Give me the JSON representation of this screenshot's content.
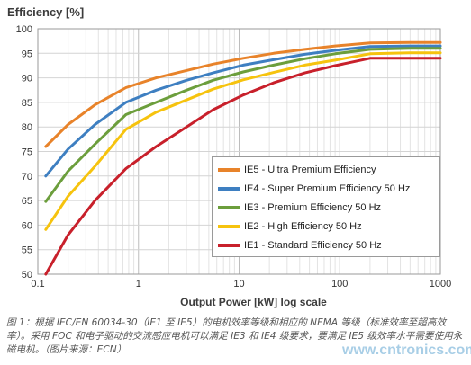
{
  "chart_data": {
    "type": "line",
    "title": "",
    "ylabel": "Efficiency [%]",
    "xlabel": "Output Power [kW]  log scale",
    "x_scale": "log",
    "xlim": [
      0.1,
      1000
    ],
    "ylim": [
      50,
      100
    ],
    "x_ticks": [
      "0.1",
      "1",
      "10",
      "100",
      "1000"
    ],
    "y_ticks": [
      "50",
      "55",
      "60",
      "65",
      "70",
      "75",
      "80",
      "85",
      "90",
      "95",
      "100"
    ],
    "grid": true,
    "legend_position": "lower-right inside plot",
    "series": [
      {
        "name": "IE5 - Ultra Premium Efficiency",
        "color": "#e8832a",
        "x": [
          0.12,
          0.2,
          0.37,
          0.75,
          1.5,
          3,
          5.5,
          11,
          22,
          45,
          90,
          200,
          500,
          1000
        ],
        "y": [
          76,
          80.5,
          84.5,
          88,
          90,
          91.5,
          92.8,
          94,
          95,
          95.8,
          96.5,
          97.1,
          97.2,
          97.2
        ]
      },
      {
        "name": "IE4 - Super Premium Efficiency 50 Hz",
        "color": "#3e7fc1",
        "x": [
          0.12,
          0.2,
          0.37,
          0.75,
          1.5,
          3,
          5.5,
          11,
          22,
          45,
          90,
          200,
          500,
          1000
        ],
        "y": [
          70,
          75.5,
          80.5,
          85,
          87.5,
          89.5,
          91,
          92.6,
          93.7,
          94.8,
          95.6,
          96.4,
          96.5,
          96.5
        ]
      },
      {
        "name": "IE3 - Premium Efficiency 50 Hz",
        "color": "#6c9e3c",
        "x": [
          0.12,
          0.2,
          0.37,
          0.75,
          1.5,
          3,
          5.5,
          11,
          22,
          45,
          90,
          200,
          500,
          1000
        ],
        "y": [
          64.8,
          71,
          76.5,
          82.5,
          85,
          87.5,
          89.5,
          91.2,
          92.6,
          93.9,
          94.9,
          95.8,
          96,
          96
        ]
      },
      {
        "name": "IE2 - High Efficiency 50 Hz",
        "color": "#f6c30e",
        "x": [
          0.12,
          0.2,
          0.37,
          0.75,
          1.5,
          3,
          5.5,
          11,
          22,
          45,
          90,
          200,
          500,
          1000
        ],
        "y": [
          59.1,
          65.9,
          72,
          79.5,
          83,
          85.5,
          87.7,
          89.6,
          91.1,
          92.6,
          93.6,
          94.9,
          95.1,
          95.1
        ]
      },
      {
        "name": "IE1 - Standard Efficiency 50 Hz",
        "color": "#c8202b",
        "x": [
          0.12,
          0.2,
          0.37,
          0.75,
          1.5,
          3,
          5.5,
          11,
          22,
          45,
          90,
          200,
          500,
          1000
        ],
        "y": [
          50,
          58,
          65,
          71.5,
          76,
          80,
          83.5,
          86.5,
          89,
          91,
          92.5,
          94,
          94,
          94
        ]
      }
    ]
  },
  "caption": "图 1：根据 IEC/EN 60034-30（IE1 至 IE5）的电机效率等级和相应的 NEMA 等级（标准效率至超高效率）。采用 FOC 和电子驱动的交流感应电机可以满足 IE3 和 IE4 级要求，要满足 IE5 级效率水平需要使用永磁电机。（图片来源：ECN）",
  "watermark": "www.cntronics.com"
}
